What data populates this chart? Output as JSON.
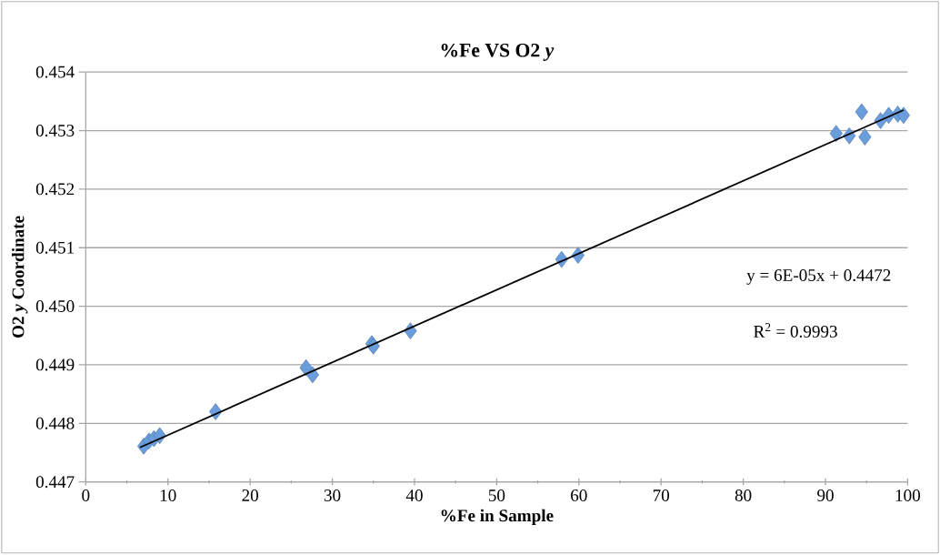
{
  "chart_data": {
    "type": "scatter",
    "title": "%Fe VS O2 *y*",
    "xlabel": "%Fe in Sample",
    "ylabel": "O2 *y* Coordinate",
    "series": [
      {
        "color": "#6a9ddc",
        "marker": "diamond",
        "x": [
          7.05,
          7.7,
          8.3,
          9.0,
          15.8,
          26.8,
          27.6,
          34.8,
          35.0,
          39.5,
          57.9,
          59.9,
          91.3,
          92.9,
          94.4,
          94.8,
          96.7,
          97.7,
          98.8,
          99.5
        ],
        "values": [
          0.44761,
          0.4477,
          0.44774,
          0.44779,
          0.4482,
          0.44895,
          0.44883,
          0.44936,
          0.44932,
          0.44958,
          0.4508,
          0.45087,
          0.45295,
          0.45291,
          0.45332,
          0.45289,
          0.45317,
          0.45326,
          0.45328,
          0.45326
        ]
      },
      {
        "type": "line",
        "color": "#000000",
        "marker": "none",
        "x": [
          6.6,
          99.5
        ],
        "values": [
          0.44759,
          0.45335
        ]
      }
    ],
    "xlim": [
      0,
      100
    ],
    "xticks": [
      0,
      10,
      20,
      30,
      40,
      50,
      60,
      70,
      80,
      90,
      100
    ],
    "ylim": [
      0.447,
      0.454
    ],
    "yticks": [
      0.447,
      0.448,
      0.449,
      {
        "value": 0.45,
        "label": "0.450"
      },
      0.451,
      0.452,
      0.453,
      0.454
    ],
    "grid": "y",
    "annotations": [
      "y = 6E-05x + 0.4472",
      "R$^{2}$ = 0.9993"
    ]
  }
}
